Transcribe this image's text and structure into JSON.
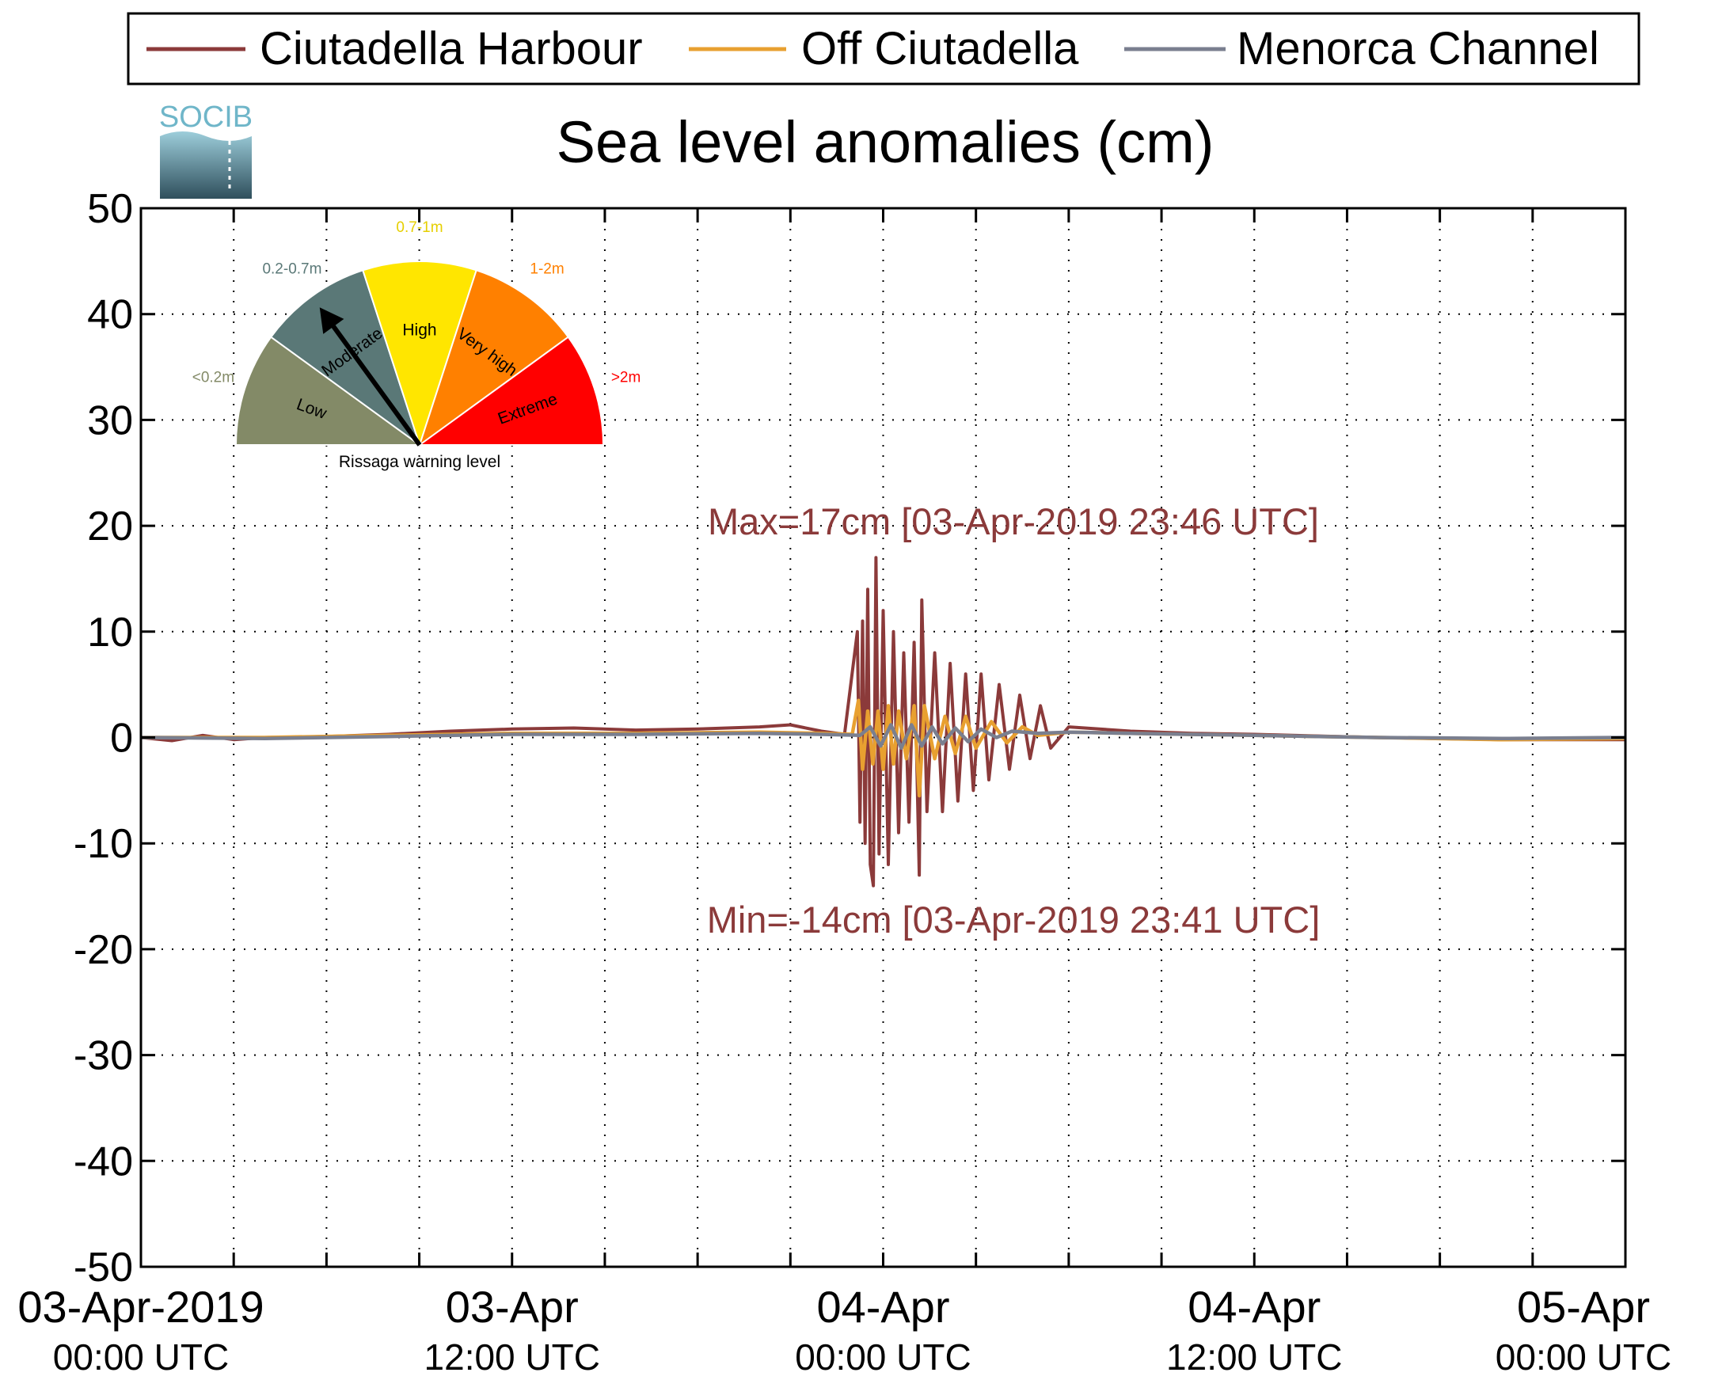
{
  "chart_data": {
    "type": "line",
    "title": "Sea level anomalies (cm)",
    "xlabel": "",
    "ylabel": "",
    "ylim": [
      -50,
      50
    ],
    "yticks": [
      50,
      40,
      30,
      20,
      10,
      0,
      -10,
      -20,
      -30,
      -40,
      -50
    ],
    "xlim": [
      "2019-04-03T00:00",
      "2019-04-05T00:00"
    ],
    "grid": true,
    "legend_position": "top",
    "x_tick_labels": [
      {
        "x": "2019-04-03T00:00",
        "line1": "03-Apr-2019",
        "line2": "00:00 UTC"
      },
      {
        "x": "2019-04-03T12:00",
        "line1": "03-Apr",
        "line2": "12:00 UTC"
      },
      {
        "x": "2019-04-04T00:00",
        "line1": "04-Apr",
        "line2": "00:00 UTC"
      },
      {
        "x": "2019-04-04T12:00",
        "line1": "04-Apr",
        "line2": "12:00 UTC"
      },
      {
        "x": "2019-04-05T00:00",
        "line1": "05-Apr",
        "line2": "00:00 UTC"
      }
    ],
    "series": [
      {
        "name": "Ciutadella Harbour",
        "color": "#8b3a3a",
        "points": [
          [
            "2019-04-03T00:00",
            0.0
          ],
          [
            "2019-04-03T01:00",
            -0.3
          ],
          [
            "2019-04-03T02:00",
            0.2
          ],
          [
            "2019-04-03T03:00",
            -0.2
          ],
          [
            "2019-04-03T04:00",
            0.0
          ],
          [
            "2019-04-03T06:00",
            0.1
          ],
          [
            "2019-04-03T08:00",
            0.3
          ],
          [
            "2019-04-03T10:00",
            0.6
          ],
          [
            "2019-04-03T12:00",
            0.8
          ],
          [
            "2019-04-03T14:00",
            0.9
          ],
          [
            "2019-04-03T16:00",
            0.7
          ],
          [
            "2019-04-03T18:00",
            0.8
          ],
          [
            "2019-04-03T20:00",
            1.0
          ],
          [
            "2019-04-03T21:00",
            1.2
          ],
          [
            "2019-04-03T22:00",
            0.6
          ],
          [
            "2019-04-03T22:45",
            0.3
          ],
          [
            "2019-04-03T23:10",
            10.0
          ],
          [
            "2019-04-03T23:15",
            -8.0
          ],
          [
            "2019-04-03T23:20",
            11.0
          ],
          [
            "2019-04-03T23:25",
            -10.0
          ],
          [
            "2019-04-03T23:30",
            14.0
          ],
          [
            "2019-04-03T23:35",
            -12.0
          ],
          [
            "2019-04-03T23:41",
            -14.0
          ],
          [
            "2019-04-03T23:46",
            17.0
          ],
          [
            "2019-04-03T23:52",
            -11.0
          ],
          [
            "2019-04-04T00:00",
            12.0
          ],
          [
            "2019-04-04T00:10",
            -12.0
          ],
          [
            "2019-04-04T00:20",
            10.0
          ],
          [
            "2019-04-04T00:30",
            -9.0
          ],
          [
            "2019-04-04T00:40",
            8.0
          ],
          [
            "2019-04-04T00:50",
            -8.0
          ],
          [
            "2019-04-04T01:00",
            9.0
          ],
          [
            "2019-04-04T01:10",
            -13.0
          ],
          [
            "2019-04-04T01:15",
            13.0
          ],
          [
            "2019-04-04T01:25",
            -7.0
          ],
          [
            "2019-04-04T01:40",
            8.0
          ],
          [
            "2019-04-04T01:55",
            -7.0
          ],
          [
            "2019-04-04T02:10",
            7.0
          ],
          [
            "2019-04-04T02:25",
            -6.0
          ],
          [
            "2019-04-04T02:40",
            6.0
          ],
          [
            "2019-04-04T02:55",
            -5.0
          ],
          [
            "2019-04-04T03:10",
            6.0
          ],
          [
            "2019-04-04T03:25",
            -4.0
          ],
          [
            "2019-04-04T03:45",
            5.0
          ],
          [
            "2019-04-04T04:05",
            -3.0
          ],
          [
            "2019-04-04T04:25",
            4.0
          ],
          [
            "2019-04-04T04:45",
            -2.0
          ],
          [
            "2019-04-04T05:05",
            3.0
          ],
          [
            "2019-04-04T05:25",
            -1.0
          ],
          [
            "2019-04-04T06:00",
            1.0
          ],
          [
            "2019-04-04T08:00",
            0.6
          ],
          [
            "2019-04-04T10:00",
            0.4
          ],
          [
            "2019-04-04T12:00",
            0.3
          ],
          [
            "2019-04-04T16:00",
            0.0
          ],
          [
            "2019-04-04T20:00",
            -0.2
          ],
          [
            "2019-04-05T00:00",
            -0.2
          ]
        ]
      },
      {
        "name": "Off Ciutadella",
        "color": "#e8a030",
        "points": [
          [
            "2019-04-03T00:00",
            0.0
          ],
          [
            "2019-04-03T04:00",
            0.0
          ],
          [
            "2019-04-03T08:00",
            0.2
          ],
          [
            "2019-04-03T12:00",
            0.4
          ],
          [
            "2019-04-03T16:00",
            0.4
          ],
          [
            "2019-04-03T20:00",
            0.5
          ],
          [
            "2019-04-03T22:00",
            0.4
          ],
          [
            "2019-04-03T23:00",
            0.3
          ],
          [
            "2019-04-03T23:12",
            3.5
          ],
          [
            "2019-04-03T23:20",
            -3.0
          ],
          [
            "2019-04-03T23:30",
            2.5
          ],
          [
            "2019-04-03T23:40",
            -2.5
          ],
          [
            "2019-04-03T23:50",
            2.5
          ],
          [
            "2019-04-04T00:00",
            -3.0
          ],
          [
            "2019-04-04T00:10",
            3.0
          ],
          [
            "2019-04-04T00:20",
            -2.5
          ],
          [
            "2019-04-04T00:30",
            2.5
          ],
          [
            "2019-04-04T00:45",
            -2.0
          ],
          [
            "2019-04-04T01:00",
            3.0
          ],
          [
            "2019-04-04T01:10",
            -5.5
          ],
          [
            "2019-04-04T01:20",
            3.0
          ],
          [
            "2019-04-04T01:40",
            -2.0
          ],
          [
            "2019-04-04T02:00",
            2.0
          ],
          [
            "2019-04-04T02:20",
            -1.5
          ],
          [
            "2019-04-04T02:40",
            2.0
          ],
          [
            "2019-04-04T03:00",
            -1.0
          ],
          [
            "2019-04-04T03:30",
            1.5
          ],
          [
            "2019-04-04T04:00",
            -0.5
          ],
          [
            "2019-04-04T04:30",
            1.0
          ],
          [
            "2019-04-04T05:00",
            0.2
          ],
          [
            "2019-04-04T06:00",
            0.5
          ],
          [
            "2019-04-04T08:00",
            0.4
          ],
          [
            "2019-04-04T12:00",
            0.2
          ],
          [
            "2019-04-04T16:00",
            0.0
          ],
          [
            "2019-04-04T20:00",
            -0.2
          ],
          [
            "2019-04-05T00:00",
            -0.1
          ]
        ]
      },
      {
        "name": "Menorca Channel",
        "color": "#7a7f8f",
        "points": [
          [
            "2019-04-03T00:00",
            0.0
          ],
          [
            "2019-04-03T04:00",
            -0.1
          ],
          [
            "2019-04-03T08:00",
            0.1
          ],
          [
            "2019-04-03T12:00",
            0.3
          ],
          [
            "2019-04-03T16:00",
            0.3
          ],
          [
            "2019-04-03T20:00",
            0.4
          ],
          [
            "2019-04-03T22:00",
            0.3
          ],
          [
            "2019-04-03T23:15",
            0.2
          ],
          [
            "2019-04-03T23:35",
            1.0
          ],
          [
            "2019-04-03T23:55",
            -0.8
          ],
          [
            "2019-04-04T00:15",
            1.2
          ],
          [
            "2019-04-04T00:35",
            -1.0
          ],
          [
            "2019-04-04T00:55",
            1.2
          ],
          [
            "2019-04-04T01:15",
            -0.8
          ],
          [
            "2019-04-04T01:35",
            1.0
          ],
          [
            "2019-04-04T01:55",
            -0.6
          ],
          [
            "2019-04-04T02:20",
            0.9
          ],
          [
            "2019-04-04T02:45",
            -0.4
          ],
          [
            "2019-04-04T03:10",
            0.8
          ],
          [
            "2019-04-04T03:40",
            0.0
          ],
          [
            "2019-04-04T04:10",
            0.6
          ],
          [
            "2019-04-04T05:00",
            0.4
          ],
          [
            "2019-04-04T06:00",
            0.5
          ],
          [
            "2019-04-04T08:00",
            0.4
          ],
          [
            "2019-04-04T12:00",
            0.2
          ],
          [
            "2019-04-04T16:00",
            0.0
          ],
          [
            "2019-04-04T20:00",
            -0.1
          ],
          [
            "2019-04-05T00:00",
            0.0
          ]
        ]
      }
    ],
    "annotations": [
      {
        "text": "Max=17cm [03-Apr-2019 23:46 UTC]",
        "color": "#8b3a3a"
      },
      {
        "text": "Min=-14cm [03-Apr-2019 23:41 UTC]",
        "color": "#8b3a3a"
      }
    ]
  },
  "logo": {
    "text": "SOCIB",
    "color": "#6fb6c9"
  },
  "gauge": {
    "caption": "Rissaga warning level",
    "pointer_level": "Moderate",
    "levels": [
      {
        "name": "Low",
        "range": "<0.2m",
        "color": "#838a67",
        "label_color": "#838a67"
      },
      {
        "name": "Moderate",
        "range": "0.2-0.7m",
        "color": "#5a7877",
        "label_color": "#5a7877"
      },
      {
        "name": "High",
        "range": "0.7-1m",
        "color": "#ffe600",
        "label_color": "#e6cf00"
      },
      {
        "name": "Very high",
        "range": "1-2m",
        "color": "#ff8000",
        "label_color": "#ff8000"
      },
      {
        "name": "Extreme",
        "range": ">2m",
        "color": "#ff0000",
        "label_color": "#ff0000"
      }
    ]
  }
}
